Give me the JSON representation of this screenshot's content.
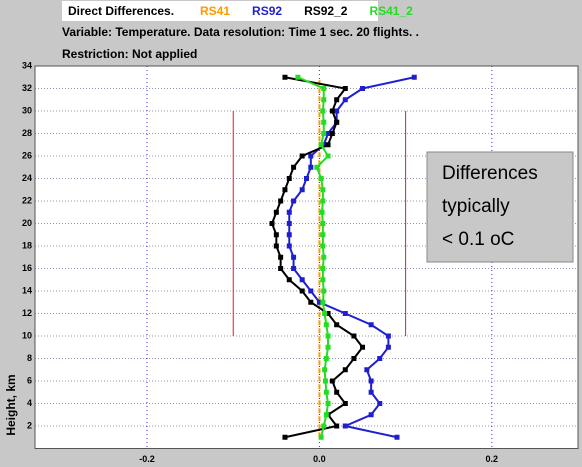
{
  "chart_data": {
    "type": "line",
    "title": "Direct Differences.",
    "subtitle": "Variable: Temperature. Data resolution: Time 1 sec. 20 flights. .",
    "restriction": "Restriction: Not applied",
    "ylabel": "Height, km",
    "heights": [
      1,
      2,
      3,
      4,
      5,
      6,
      7,
      8,
      9,
      10,
      11,
      12,
      13,
      14,
      15,
      16,
      17,
      18,
      19,
      20,
      21,
      22,
      23,
      24,
      25,
      26,
      27,
      28,
      29,
      30,
      31,
      32,
      33
    ],
    "series": [
      {
        "name": "RS41",
        "color": "#ff9a00",
        "dashed": true,
        "markers": false,
        "values": [
          0,
          0,
          0,
          0,
          0,
          0,
          0,
          0,
          0,
          0,
          0,
          0,
          0,
          0,
          0,
          0,
          0,
          0,
          0,
          0,
          0,
          0,
          0,
          0,
          0,
          0,
          0,
          0,
          0,
          0,
          0,
          0,
          0
        ]
      },
      {
        "name": "RS92",
        "color": "#1f1fd0",
        "dashed": false,
        "markers": true,
        "values": [
          0.09,
          0.03,
          0.06,
          0.07,
          0.06,
          0.06,
          0.055,
          0.07,
          0.08,
          0.08,
          0.06,
          0.03,
          0,
          -0.01,
          -0.02,
          -0.03,
          -0.03,
          -0.035,
          -0.035,
          -0.035,
          -0.035,
          -0.03,
          -0.02,
          -0.015,
          -0.01,
          -0.01,
          0.005,
          0.01,
          0.02,
          0.02,
          0.03,
          0.05,
          0.11
        ]
      },
      {
        "name": "RS92_2",
        "color": "#000000",
        "dashed": false,
        "markers": true,
        "values": [
          -0.04,
          0.02,
          0.01,
          0.03,
          0.02,
          0.015,
          0.03,
          0.04,
          0.05,
          0.04,
          0.02,
          0.01,
          -0.01,
          -0.02,
          -0.035,
          -0.045,
          -0.045,
          -0.05,
          -0.05,
          -0.055,
          -0.05,
          -0.045,
          -0.04,
          -0.035,
          -0.03,
          -0.02,
          0.01,
          0.015,
          0.02,
          0.015,
          0.02,
          0.03,
          -0.04
        ]
      },
      {
        "name": "RS41_2",
        "color": "#22dd22",
        "dashed": false,
        "markers": true,
        "values": [
          0.002,
          0.005,
          0.008,
          0.01,
          0.008,
          0.007,
          0.006,
          0.008,
          0.01,
          0.01,
          0.008,
          0.006,
          0.004,
          0.005,
          0.004,
          0.004,
          0.005,
          0.004,
          0.004,
          0.004,
          0.003,
          0.004,
          0.004,
          0.002,
          -0.003,
          0.01,
          0.002,
          0.005,
          0.005,
          0.004,
          0.005,
          0.005,
          -0.025
        ]
      }
    ],
    "reference_lines": [
      {
        "x": -0.1,
        "from": 10,
        "to": 30,
        "color": "#e02020"
      },
      {
        "x": 0.1,
        "from": 10,
        "to": 30,
        "color": "#e02020"
      }
    ],
    "annotation": [
      "Differences",
      "typically",
      "< 0.1 oC"
    ],
    "xlim": [
      -0.33,
      0.3
    ],
    "ylim": [
      0,
      34
    ],
    "xticks": [
      -0.2,
      {
        "value": 0,
        "label": "0.0"
      },
      0.2
    ],
    "yticks": [
      2,
      4,
      6,
      8,
      10,
      12,
      14,
      16,
      18,
      20,
      22,
      24,
      26,
      28,
      30,
      32,
      34
    ],
    "grid": true
  }
}
